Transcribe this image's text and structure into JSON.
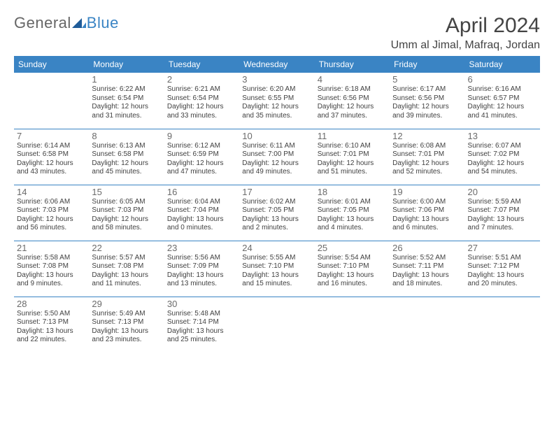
{
  "logo": {
    "part1": "General",
    "part2": "Blue"
  },
  "header": {
    "month_title": "April 2024",
    "location": "Umm al Jimal, Mafraq, Jordan"
  },
  "colors": {
    "header_bg": "#3a84c4",
    "header_text": "#ffffff",
    "body_text": "#414141",
    "rule": "#3a84c4"
  },
  "day_names": [
    "Sunday",
    "Monday",
    "Tuesday",
    "Wednesday",
    "Thursday",
    "Friday",
    "Saturday"
  ],
  "weeks": [
    [
      null,
      {
        "n": "1",
        "sr": "Sunrise: 6:22 AM",
        "ss": "Sunset: 6:54 PM",
        "d1": "Daylight: 12 hours",
        "d2": "and 31 minutes."
      },
      {
        "n": "2",
        "sr": "Sunrise: 6:21 AM",
        "ss": "Sunset: 6:54 PM",
        "d1": "Daylight: 12 hours",
        "d2": "and 33 minutes."
      },
      {
        "n": "3",
        "sr": "Sunrise: 6:20 AM",
        "ss": "Sunset: 6:55 PM",
        "d1": "Daylight: 12 hours",
        "d2": "and 35 minutes."
      },
      {
        "n": "4",
        "sr": "Sunrise: 6:18 AM",
        "ss": "Sunset: 6:56 PM",
        "d1": "Daylight: 12 hours",
        "d2": "and 37 minutes."
      },
      {
        "n": "5",
        "sr": "Sunrise: 6:17 AM",
        "ss": "Sunset: 6:56 PM",
        "d1": "Daylight: 12 hours",
        "d2": "and 39 minutes."
      },
      {
        "n": "6",
        "sr": "Sunrise: 6:16 AM",
        "ss": "Sunset: 6:57 PM",
        "d1": "Daylight: 12 hours",
        "d2": "and 41 minutes."
      }
    ],
    [
      {
        "n": "7",
        "sr": "Sunrise: 6:14 AM",
        "ss": "Sunset: 6:58 PM",
        "d1": "Daylight: 12 hours",
        "d2": "and 43 minutes."
      },
      {
        "n": "8",
        "sr": "Sunrise: 6:13 AM",
        "ss": "Sunset: 6:58 PM",
        "d1": "Daylight: 12 hours",
        "d2": "and 45 minutes."
      },
      {
        "n": "9",
        "sr": "Sunrise: 6:12 AM",
        "ss": "Sunset: 6:59 PM",
        "d1": "Daylight: 12 hours",
        "d2": "and 47 minutes."
      },
      {
        "n": "10",
        "sr": "Sunrise: 6:11 AM",
        "ss": "Sunset: 7:00 PM",
        "d1": "Daylight: 12 hours",
        "d2": "and 49 minutes."
      },
      {
        "n": "11",
        "sr": "Sunrise: 6:10 AM",
        "ss": "Sunset: 7:01 PM",
        "d1": "Daylight: 12 hours",
        "d2": "and 51 minutes."
      },
      {
        "n": "12",
        "sr": "Sunrise: 6:08 AM",
        "ss": "Sunset: 7:01 PM",
        "d1": "Daylight: 12 hours",
        "d2": "and 52 minutes."
      },
      {
        "n": "13",
        "sr": "Sunrise: 6:07 AM",
        "ss": "Sunset: 7:02 PM",
        "d1": "Daylight: 12 hours",
        "d2": "and 54 minutes."
      }
    ],
    [
      {
        "n": "14",
        "sr": "Sunrise: 6:06 AM",
        "ss": "Sunset: 7:03 PM",
        "d1": "Daylight: 12 hours",
        "d2": "and 56 minutes."
      },
      {
        "n": "15",
        "sr": "Sunrise: 6:05 AM",
        "ss": "Sunset: 7:03 PM",
        "d1": "Daylight: 12 hours",
        "d2": "and 58 minutes."
      },
      {
        "n": "16",
        "sr": "Sunrise: 6:04 AM",
        "ss": "Sunset: 7:04 PM",
        "d1": "Daylight: 13 hours",
        "d2": "and 0 minutes."
      },
      {
        "n": "17",
        "sr": "Sunrise: 6:02 AM",
        "ss": "Sunset: 7:05 PM",
        "d1": "Daylight: 13 hours",
        "d2": "and 2 minutes."
      },
      {
        "n": "18",
        "sr": "Sunrise: 6:01 AM",
        "ss": "Sunset: 7:05 PM",
        "d1": "Daylight: 13 hours",
        "d2": "and 4 minutes."
      },
      {
        "n": "19",
        "sr": "Sunrise: 6:00 AM",
        "ss": "Sunset: 7:06 PM",
        "d1": "Daylight: 13 hours",
        "d2": "and 6 minutes."
      },
      {
        "n": "20",
        "sr": "Sunrise: 5:59 AM",
        "ss": "Sunset: 7:07 PM",
        "d1": "Daylight: 13 hours",
        "d2": "and 7 minutes."
      }
    ],
    [
      {
        "n": "21",
        "sr": "Sunrise: 5:58 AM",
        "ss": "Sunset: 7:08 PM",
        "d1": "Daylight: 13 hours",
        "d2": "and 9 minutes."
      },
      {
        "n": "22",
        "sr": "Sunrise: 5:57 AM",
        "ss": "Sunset: 7:08 PM",
        "d1": "Daylight: 13 hours",
        "d2": "and 11 minutes."
      },
      {
        "n": "23",
        "sr": "Sunrise: 5:56 AM",
        "ss": "Sunset: 7:09 PM",
        "d1": "Daylight: 13 hours",
        "d2": "and 13 minutes."
      },
      {
        "n": "24",
        "sr": "Sunrise: 5:55 AM",
        "ss": "Sunset: 7:10 PM",
        "d1": "Daylight: 13 hours",
        "d2": "and 15 minutes."
      },
      {
        "n": "25",
        "sr": "Sunrise: 5:54 AM",
        "ss": "Sunset: 7:10 PM",
        "d1": "Daylight: 13 hours",
        "d2": "and 16 minutes."
      },
      {
        "n": "26",
        "sr": "Sunrise: 5:52 AM",
        "ss": "Sunset: 7:11 PM",
        "d1": "Daylight: 13 hours",
        "d2": "and 18 minutes."
      },
      {
        "n": "27",
        "sr": "Sunrise: 5:51 AM",
        "ss": "Sunset: 7:12 PM",
        "d1": "Daylight: 13 hours",
        "d2": "and 20 minutes."
      }
    ],
    [
      {
        "n": "28",
        "sr": "Sunrise: 5:50 AM",
        "ss": "Sunset: 7:13 PM",
        "d1": "Daylight: 13 hours",
        "d2": "and 22 minutes."
      },
      {
        "n": "29",
        "sr": "Sunrise: 5:49 AM",
        "ss": "Sunset: 7:13 PM",
        "d1": "Daylight: 13 hours",
        "d2": "and 23 minutes."
      },
      {
        "n": "30",
        "sr": "Sunrise: 5:48 AM",
        "ss": "Sunset: 7:14 PM",
        "d1": "Daylight: 13 hours",
        "d2": "and 25 minutes."
      },
      null,
      null,
      null,
      null
    ]
  ]
}
